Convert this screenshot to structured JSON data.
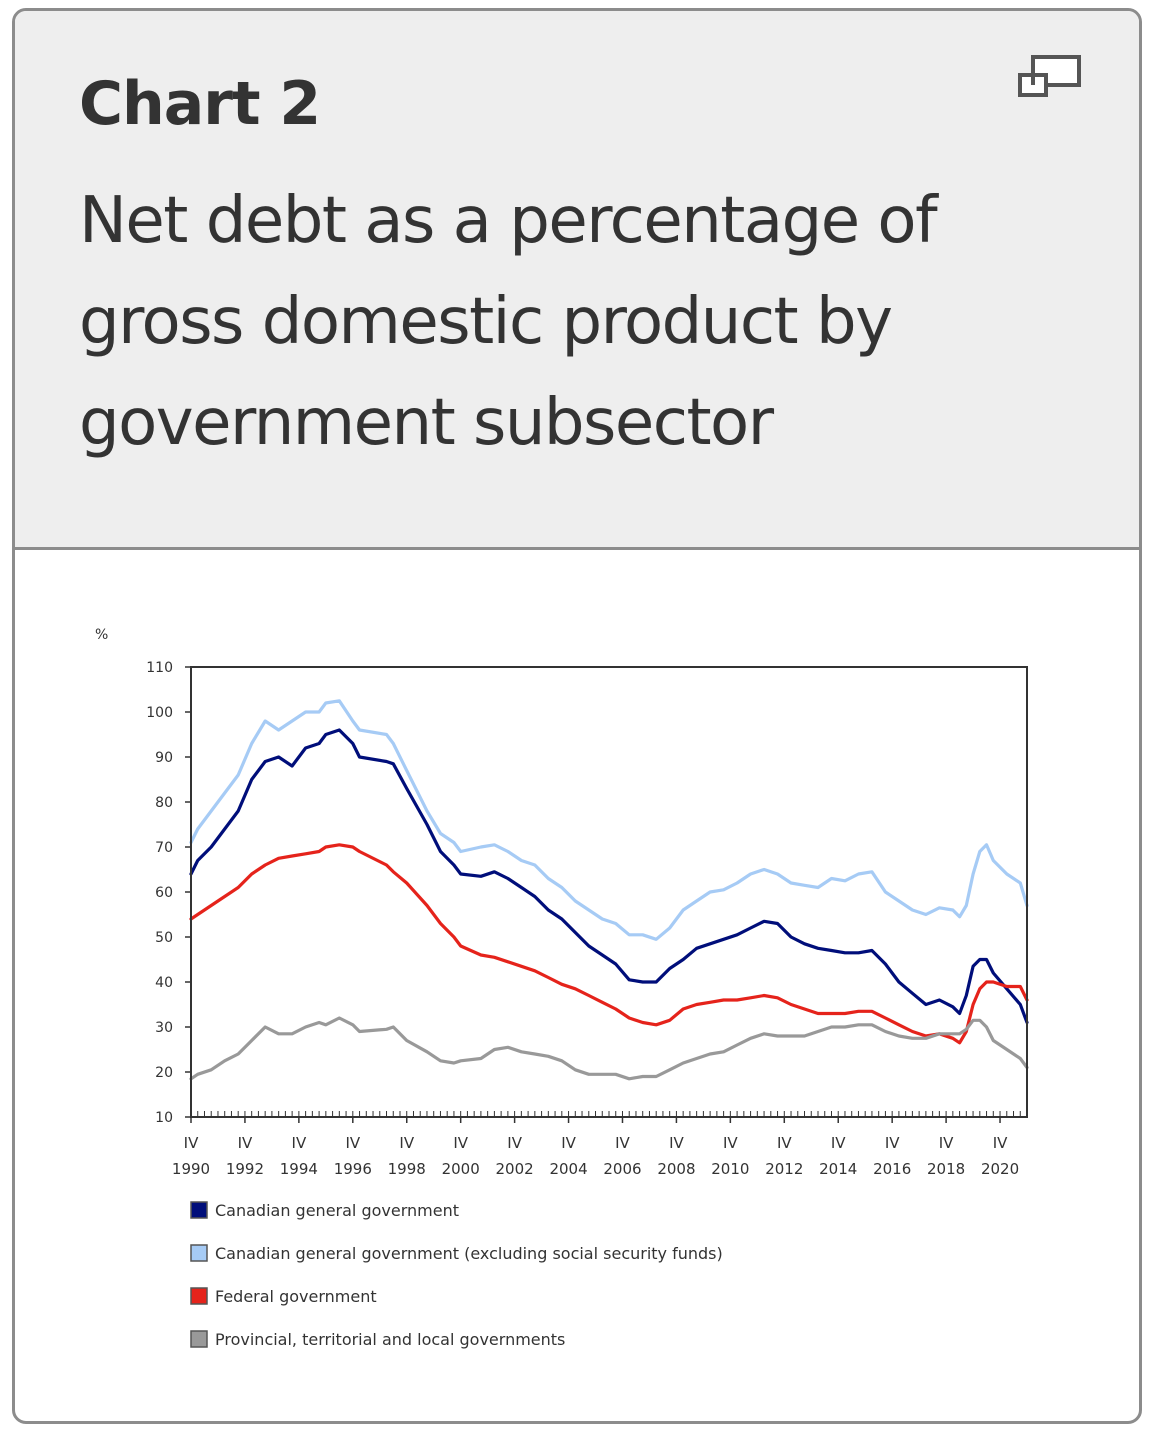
{
  "header": {
    "label": "Chart 2",
    "title": "Net debt as a percentage of gross domestic product by government subsector",
    "expand_icon": "expand-window-icon"
  },
  "chart_data": {
    "type": "line",
    "ylabel": "%",
    "ylim": [
      10,
      110
    ],
    "yticks": [
      10,
      20,
      30,
      40,
      50,
      60,
      70,
      80,
      90,
      100,
      110
    ],
    "xlim": [
      1990.75,
      2021.75
    ],
    "x_tick_labels": [
      {
        "quarter": "IV",
        "year": "1990"
      },
      {
        "quarter": "IV",
        "year": "1992"
      },
      {
        "quarter": "IV",
        "year": "1994"
      },
      {
        "quarter": "IV",
        "year": "1996"
      },
      {
        "quarter": "IV",
        "year": "1998"
      },
      {
        "quarter": "IV",
        "year": "2000"
      },
      {
        "quarter": "IV",
        "year": "2002"
      },
      {
        "quarter": "IV",
        "year": "2004"
      },
      {
        "quarter": "IV",
        "year": "2006"
      },
      {
        "quarter": "IV",
        "year": "2008"
      },
      {
        "quarter": "IV",
        "year": "2010"
      },
      {
        "quarter": "IV",
        "year": "2012"
      },
      {
        "quarter": "IV",
        "year": "2014"
      },
      {
        "quarter": "IV",
        "year": "2016"
      },
      {
        "quarter": "IV",
        "year": "2018"
      },
      {
        "quarter": "IV",
        "year": "2020"
      }
    ],
    "grid": false,
    "legend_position": "bottom",
    "series": [
      {
        "name": "Canadian general government (excluding social security funds)",
        "color": "#a6cbf5",
        "points": [
          [
            1990.75,
            71
          ],
          [
            1991.0,
            74
          ],
          [
            1991.5,
            78
          ],
          [
            1992.0,
            82
          ],
          [
            1992.5,
            86
          ],
          [
            1993.0,
            93
          ],
          [
            1993.5,
            98
          ],
          [
            1994.0,
            96
          ],
          [
            1994.5,
            98
          ],
          [
            1995.0,
            100
          ],
          [
            1995.5,
            100
          ],
          [
            1995.75,
            102
          ],
          [
            1996.25,
            102.5
          ],
          [
            1996.75,
            98
          ],
          [
            1997.0,
            96
          ],
          [
            1998.0,
            95
          ],
          [
            1998.25,
            93
          ],
          [
            1998.75,
            87
          ],
          [
            1999.5,
            78
          ],
          [
            2000.0,
            73
          ],
          [
            2000.5,
            71
          ],
          [
            2000.75,
            69
          ],
          [
            2001.5,
            70
          ],
          [
            2002.0,
            70.5
          ],
          [
            2002.5,
            69
          ],
          [
            2003.0,
            67
          ],
          [
            2003.5,
            66
          ],
          [
            2004.0,
            63
          ],
          [
            2004.5,
            61
          ],
          [
            2005.0,
            58
          ],
          [
            2005.5,
            56
          ],
          [
            2006.0,
            54
          ],
          [
            2006.5,
            53
          ],
          [
            2007.0,
            50.5
          ],
          [
            2007.5,
            50.5
          ],
          [
            2008.0,
            49.5
          ],
          [
            2008.5,
            52
          ],
          [
            2009.0,
            56
          ],
          [
            2009.5,
            58
          ],
          [
            2010.0,
            60
          ],
          [
            2010.5,
            60.5
          ],
          [
            2011.0,
            62
          ],
          [
            2011.5,
            64
          ],
          [
            2012.0,
            65
          ],
          [
            2012.5,
            64
          ],
          [
            2013.0,
            62
          ],
          [
            2013.5,
            61.5
          ],
          [
            2014.0,
            61
          ],
          [
            2014.5,
            63
          ],
          [
            2015.0,
            62.5
          ],
          [
            2015.5,
            64
          ],
          [
            2016.0,
            64.5
          ],
          [
            2016.5,
            60
          ],
          [
            2017.0,
            58
          ],
          [
            2017.5,
            56
          ],
          [
            2018.0,
            55
          ],
          [
            2018.5,
            56.5
          ],
          [
            2019.0,
            56
          ],
          [
            2019.25,
            54.5
          ],
          [
            2019.5,
            57
          ],
          [
            2019.75,
            64
          ],
          [
            2020.0,
            69
          ],
          [
            2020.25,
            70.5
          ],
          [
            2020.5,
            67
          ],
          [
            2021.0,
            64
          ],
          [
            2021.5,
            62
          ],
          [
            2021.75,
            57
          ]
        ]
      },
      {
        "name": "Canadian general government",
        "color": "#000e7a",
        "points": [
          [
            1990.75,
            64
          ],
          [
            1991.0,
            67
          ],
          [
            1991.5,
            70
          ],
          [
            1992.0,
            74
          ],
          [
            1992.5,
            78
          ],
          [
            1993.0,
            85
          ],
          [
            1993.5,
            89
          ],
          [
            1994.0,
            90
          ],
          [
            1994.5,
            88
          ],
          [
            1995.0,
            92
          ],
          [
            1995.5,
            93
          ],
          [
            1995.75,
            95
          ],
          [
            1996.25,
            96
          ],
          [
            1996.75,
            93
          ],
          [
            1997.0,
            90
          ],
          [
            1998.0,
            89
          ],
          [
            1998.25,
            88.5
          ],
          [
            1998.75,
            83
          ],
          [
            1999.5,
            75
          ],
          [
            2000.0,
            69
          ],
          [
            2000.5,
            66
          ],
          [
            2000.75,
            64
          ],
          [
            2001.5,
            63.5
          ],
          [
            2002.0,
            64.5
          ],
          [
            2002.5,
            63
          ],
          [
            2003.0,
            61
          ],
          [
            2003.5,
            59
          ],
          [
            2004.0,
            56
          ],
          [
            2004.5,
            54
          ],
          [
            2005.0,
            51
          ],
          [
            2005.5,
            48
          ],
          [
            2006.0,
            46
          ],
          [
            2006.5,
            44
          ],
          [
            2007.0,
            40.5
          ],
          [
            2007.5,
            40
          ],
          [
            2008.0,
            40
          ],
          [
            2008.5,
            43
          ],
          [
            2009.0,
            45
          ],
          [
            2009.5,
            47.5
          ],
          [
            2010.0,
            48.5
          ],
          [
            2010.5,
            49.5
          ],
          [
            2011.0,
            50.5
          ],
          [
            2011.5,
            52
          ],
          [
            2012.0,
            53.5
          ],
          [
            2012.5,
            53
          ],
          [
            2013.0,
            50
          ],
          [
            2013.5,
            48.5
          ],
          [
            2014.0,
            47.5
          ],
          [
            2014.5,
            47
          ],
          [
            2015.0,
            46.5
          ],
          [
            2015.5,
            46.5
          ],
          [
            2016.0,
            47
          ],
          [
            2016.5,
            44
          ],
          [
            2017.0,
            40
          ],
          [
            2017.5,
            37.5
          ],
          [
            2018.0,
            35
          ],
          [
            2018.5,
            36
          ],
          [
            2019.0,
            34.5
          ],
          [
            2019.25,
            33
          ],
          [
            2019.5,
            37
          ],
          [
            2019.75,
            43.5
          ],
          [
            2020.0,
            45
          ],
          [
            2020.25,
            45
          ],
          [
            2020.5,
            42
          ],
          [
            2021.0,
            38.5
          ],
          [
            2021.5,
            35
          ],
          [
            2021.75,
            31
          ]
        ]
      },
      {
        "name": "Federal government",
        "color": "#e5231b",
        "points": [
          [
            1990.75,
            54
          ],
          [
            1991.0,
            55
          ],
          [
            1991.5,
            57
          ],
          [
            1992.0,
            59
          ],
          [
            1992.5,
            61
          ],
          [
            1993.0,
            64
          ],
          [
            1993.5,
            66
          ],
          [
            1994.0,
            67.5
          ],
          [
            1994.5,
            68
          ],
          [
            1995.0,
            68.5
          ],
          [
            1995.5,
            69
          ],
          [
            1995.75,
            70
          ],
          [
            1996.25,
            70.5
          ],
          [
            1996.75,
            70
          ],
          [
            1997.0,
            69
          ],
          [
            1998.0,
            66
          ],
          [
            1998.25,
            64.5
          ],
          [
            1998.75,
            62
          ],
          [
            1999.5,
            57
          ],
          [
            2000.0,
            53
          ],
          [
            2000.5,
            50
          ],
          [
            2000.75,
            48
          ],
          [
            2001.5,
            46
          ],
          [
            2002.0,
            45.5
          ],
          [
            2002.5,
            44.5
          ],
          [
            2003.0,
            43.5
          ],
          [
            2003.5,
            42.5
          ],
          [
            2004.0,
            41
          ],
          [
            2004.5,
            39.5
          ],
          [
            2005.0,
            38.5
          ],
          [
            2005.5,
            37
          ],
          [
            2006.0,
            35.5
          ],
          [
            2006.5,
            34
          ],
          [
            2007.0,
            32
          ],
          [
            2007.5,
            31
          ],
          [
            2008.0,
            30.5
          ],
          [
            2008.5,
            31.5
          ],
          [
            2009.0,
            34
          ],
          [
            2009.5,
            35
          ],
          [
            2010.0,
            35.5
          ],
          [
            2010.5,
            36
          ],
          [
            2011.0,
            36
          ],
          [
            2011.5,
            36.5
          ],
          [
            2012.0,
            37
          ],
          [
            2012.5,
            36.5
          ],
          [
            2013.0,
            35
          ],
          [
            2013.5,
            34
          ],
          [
            2014.0,
            33
          ],
          [
            2014.5,
            33
          ],
          [
            2015.0,
            33
          ],
          [
            2015.5,
            33.5
          ],
          [
            2016.0,
            33.5
          ],
          [
            2016.5,
            32
          ],
          [
            2017.0,
            30.5
          ],
          [
            2017.5,
            29
          ],
          [
            2018.0,
            28
          ],
          [
            2018.5,
            28.5
          ],
          [
            2019.0,
            27.5
          ],
          [
            2019.25,
            26.5
          ],
          [
            2019.5,
            29
          ],
          [
            2019.75,
            35
          ],
          [
            2020.0,
            38.5
          ],
          [
            2020.25,
            40
          ],
          [
            2020.5,
            40
          ],
          [
            2021.0,
            39
          ],
          [
            2021.5,
            39
          ],
          [
            2021.75,
            36
          ]
        ]
      },
      {
        "name": "Provincial, territorial and local governments",
        "color": "#999999",
        "points": [
          [
            1990.75,
            18.5
          ],
          [
            1991.0,
            19.5
          ],
          [
            1991.5,
            20.5
          ],
          [
            1992.0,
            22.5
          ],
          [
            1992.5,
            24
          ],
          [
            1993.0,
            27
          ],
          [
            1993.5,
            30
          ],
          [
            1994.0,
            28.5
          ],
          [
            1994.5,
            28.5
          ],
          [
            1995.0,
            30
          ],
          [
            1995.5,
            31
          ],
          [
            1995.75,
            30.5
          ],
          [
            1996.25,
            32
          ],
          [
            1996.75,
            30.5
          ],
          [
            1997.0,
            29
          ],
          [
            1998.0,
            29.5
          ],
          [
            1998.25,
            30
          ],
          [
            1998.75,
            27
          ],
          [
            1999.5,
            24.5
          ],
          [
            2000.0,
            22.5
          ],
          [
            2000.5,
            22
          ],
          [
            2000.75,
            22.5
          ],
          [
            2001.5,
            23
          ],
          [
            2002.0,
            25
          ],
          [
            2002.5,
            25.5
          ],
          [
            2003.0,
            24.5
          ],
          [
            2003.5,
            24
          ],
          [
            2004.0,
            23.5
          ],
          [
            2004.5,
            22.5
          ],
          [
            2005.0,
            20.5
          ],
          [
            2005.5,
            19.5
          ],
          [
            2006.0,
            19.5
          ],
          [
            2006.5,
            19.5
          ],
          [
            2007.0,
            18.5
          ],
          [
            2007.5,
            19
          ],
          [
            2008.0,
            19
          ],
          [
            2008.5,
            20.5
          ],
          [
            2009.0,
            22
          ],
          [
            2009.5,
            23
          ],
          [
            2010.0,
            24
          ],
          [
            2010.5,
            24.5
          ],
          [
            2011.0,
            26
          ],
          [
            2011.5,
            27.5
          ],
          [
            2012.0,
            28.5
          ],
          [
            2012.5,
            28
          ],
          [
            2013.0,
            28
          ],
          [
            2013.5,
            28
          ],
          [
            2014.0,
            29
          ],
          [
            2014.5,
            30
          ],
          [
            2015.0,
            30
          ],
          [
            2015.5,
            30.5
          ],
          [
            2016.0,
            30.5
          ],
          [
            2016.5,
            29
          ],
          [
            2017.0,
            28
          ],
          [
            2017.5,
            27.5
          ],
          [
            2018.0,
            27.5
          ],
          [
            2018.5,
            28.5
          ],
          [
            2019.0,
            28.5
          ],
          [
            2019.25,
            28.5
          ],
          [
            2019.5,
            29.5
          ],
          [
            2019.75,
            31.5
          ],
          [
            2020.0,
            31.5
          ],
          [
            2020.25,
            30
          ],
          [
            2020.5,
            27
          ],
          [
            2021.0,
            25
          ],
          [
            2021.5,
            23
          ],
          [
            2021.75,
            21
          ]
        ]
      }
    ],
    "legend_order": [
      1,
      0,
      2,
      3
    ]
  }
}
